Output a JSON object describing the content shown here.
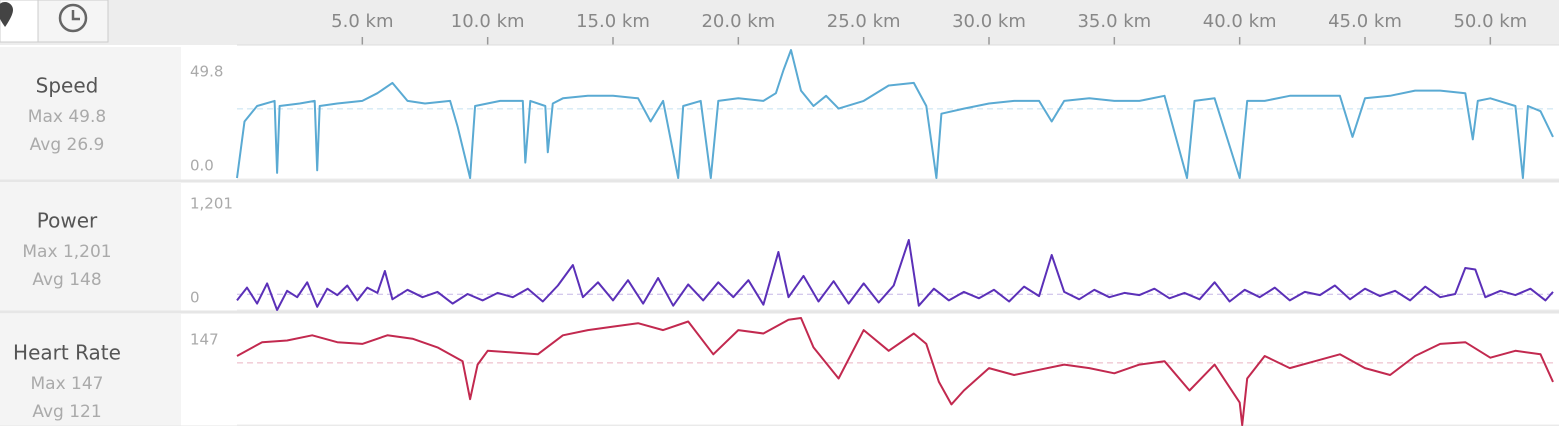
{
  "x_axis": {
    "xlim": [
      0,
      52.5
    ],
    "xticks": [
      {
        "value": 5,
        "label": "5.0 km"
      },
      {
        "value": 10,
        "label": "10.0 km"
      },
      {
        "value": 15,
        "label": "15.0 km"
      },
      {
        "value": 20,
        "label": "20.0 km"
      },
      {
        "value": 25,
        "label": "25.0 km"
      },
      {
        "value": 30,
        "label": "30.0 km"
      },
      {
        "value": 35,
        "label": "35.0 km"
      },
      {
        "value": 40,
        "label": "40.0 km"
      },
      {
        "value": 45,
        "label": "45.0 km"
      },
      {
        "value": 50,
        "label": "50.0 km"
      }
    ]
  },
  "chart_data": [
    {
      "type": "line",
      "title": "Speed",
      "max_label": "Max 49.8",
      "avg": {
        "value": 26.9,
        "label": "Avg 26.9"
      },
      "color": "#5aaad3",
      "ylim": [
        0,
        49.8
      ],
      "yticks": [
        49.8,
        {
          "value": 0,
          "label": "0.0"
        }
      ],
      "x": [
        0,
        0.3,
        0.8,
        1.5,
        1.6,
        1.7,
        2.5,
        3.1,
        3.2,
        3.3,
        4,
        5,
        5.6,
        6.2,
        6.8,
        7.5,
        8.5,
        8.8,
        9.3,
        9.5,
        10.5,
        11.4,
        11.5,
        11.7,
        12.3,
        12.4,
        12.6,
        13,
        14,
        15,
        16,
        16.5,
        17,
        17.6,
        17.8,
        18.5,
        18.9,
        19.2,
        20,
        21,
        21.5,
        21.8,
        22.1,
        22.5,
        23,
        23.5,
        24,
        25,
        26,
        27,
        27.5,
        27.9,
        28.1,
        29,
        30,
        31,
        32,
        32.5,
        33,
        34,
        35,
        36,
        37,
        37.9,
        38.2,
        39,
        40,
        40.3,
        41,
        42,
        43,
        44,
        44.5,
        45,
        46,
        47,
        48,
        49,
        49.3,
        49.5,
        50,
        51,
        51.3,
        51.5,
        52,
        52.5
      ],
      "values": [
        0,
        22,
        28,
        30,
        2,
        28,
        29,
        30,
        3,
        28,
        29,
        30,
        33,
        37,
        30,
        29,
        30,
        20,
        0,
        28,
        30,
        30,
        6,
        30,
        28,
        10,
        29,
        31,
        32,
        32,
        31,
        22,
        30,
        0,
        28,
        30,
        0,
        30,
        31,
        30,
        33,
        42,
        49.8,
        34,
        28,
        32,
        27,
        30,
        36,
        37,
        28,
        0,
        25,
        27,
        29,
        30,
        30,
        22,
        30,
        31,
        30,
        30,
        32,
        0,
        30,
        31,
        0,
        30,
        30,
        32,
        32,
        32,
        16,
        31,
        32,
        34,
        34,
        33,
        15,
        30,
        31,
        28,
        0,
        28,
        26,
        16
      ]
    },
    {
      "type": "line",
      "title": "Power",
      "max_label": "Max 1,201",
      "avg": {
        "value": 148,
        "label": "Avg 148"
      },
      "color": "#5b30b8",
      "ylim": [
        0,
        1201
      ],
      "yticks": [
        {
          "value": 1201,
          "label": "1,201"
        },
        0
      ],
      "x": [
        0,
        0.4,
        0.8,
        1.2,
        1.6,
        2,
        2.4,
        2.8,
        3.2,
        3.6,
        4,
        4.4,
        4.8,
        5.2,
        5.6,
        5.9,
        6.2,
        6.8,
        7.4,
        8,
        8.6,
        9.2,
        9.8,
        10.4,
        11,
        11.6,
        12.2,
        12.8,
        13.4,
        13.8,
        14.4,
        15,
        15.6,
        16.2,
        16.8,
        17.4,
        18,
        18.6,
        19.2,
        19.8,
        20.4,
        21,
        21.6,
        22,
        22.6,
        23.2,
        23.8,
        24.4,
        25,
        25.6,
        26.2,
        26.8,
        27.2,
        27.8,
        28.4,
        29,
        29.6,
        30.2,
        30.8,
        31.4,
        32,
        32.5,
        33,
        33.6,
        34.2,
        34.8,
        35.4,
        36,
        36.6,
        37.2,
        37.8,
        38.4,
        39,
        39.6,
        40.2,
        40.8,
        41.4,
        42,
        42.6,
        43.2,
        43.8,
        44.4,
        45,
        45.6,
        46.2,
        46.8,
        47.4,
        48,
        48.6,
        49,
        49.4,
        49.8,
        50.4,
        51,
        51.6,
        52.2,
        52.5
      ],
      "values": [
        90,
        210,
        60,
        250,
        0,
        180,
        120,
        260,
        30,
        200,
        140,
        230,
        90,
        210,
        160,
        366,
        100,
        190,
        120,
        170,
        60,
        150,
        90,
        160,
        120,
        200,
        80,
        230,
        422,
        120,
        260,
        90,
        280,
        60,
        300,
        40,
        240,
        90,
        260,
        120,
        280,
        50,
        544,
        120,
        320,
        80,
        270,
        60,
        250,
        70,
        230,
        657,
        40,
        200,
        90,
        170,
        110,
        190,
        80,
        220,
        130,
        516,
        170,
        100,
        190,
        120,
        160,
        140,
        200,
        110,
        160,
        100,
        260,
        80,
        190,
        120,
        210,
        90,
        170,
        140,
        230,
        100,
        200,
        130,
        180,
        90,
        220,
        120,
        150,
        394,
        380,
        120,
        180,
        140,
        200,
        90,
        170
      ]
    },
    {
      "type": "line",
      "title": "Heart Rate",
      "max_label": "Max 147",
      "avg": {
        "value": 121,
        "label": "Avg 121"
      },
      "color": "#c2294f",
      "ylim": [
        70,
        147
      ],
      "yticks": [
        147
      ],
      "x": [
        0,
        1,
        2,
        3,
        4,
        5,
        6,
        7,
        8,
        9,
        9.3,
        9.6,
        10,
        11,
        12,
        13,
        14,
        15,
        16,
        17,
        18,
        19,
        20,
        21,
        22,
        22.5,
        23,
        24,
        25,
        26,
        27,
        27.5,
        28,
        28.5,
        29,
        30,
        31,
        32,
        33,
        34,
        35,
        36,
        37,
        38,
        39,
        40,
        40.1,
        40.3,
        41,
        42,
        43,
        44,
        45,
        46,
        47,
        48,
        49,
        50,
        51,
        52,
        52.5
      ],
      "values": [
        125,
        133,
        134,
        137,
        133,
        132,
        137,
        135,
        130,
        122,
        100,
        120,
        128,
        127,
        126,
        137,
        140,
        142,
        144,
        140,
        145,
        126,
        140,
        138,
        146,
        147,
        130,
        112,
        140,
        128,
        138,
        132,
        110,
        97,
        105,
        118,
        114,
        117,
        120,
        118,
        115,
        120,
        122,
        105,
        120,
        98,
        85,
        112,
        125,
        118,
        122,
        126,
        118,
        114,
        125,
        132,
        133,
        124,
        128,
        126,
        110
      ]
    }
  ]
}
